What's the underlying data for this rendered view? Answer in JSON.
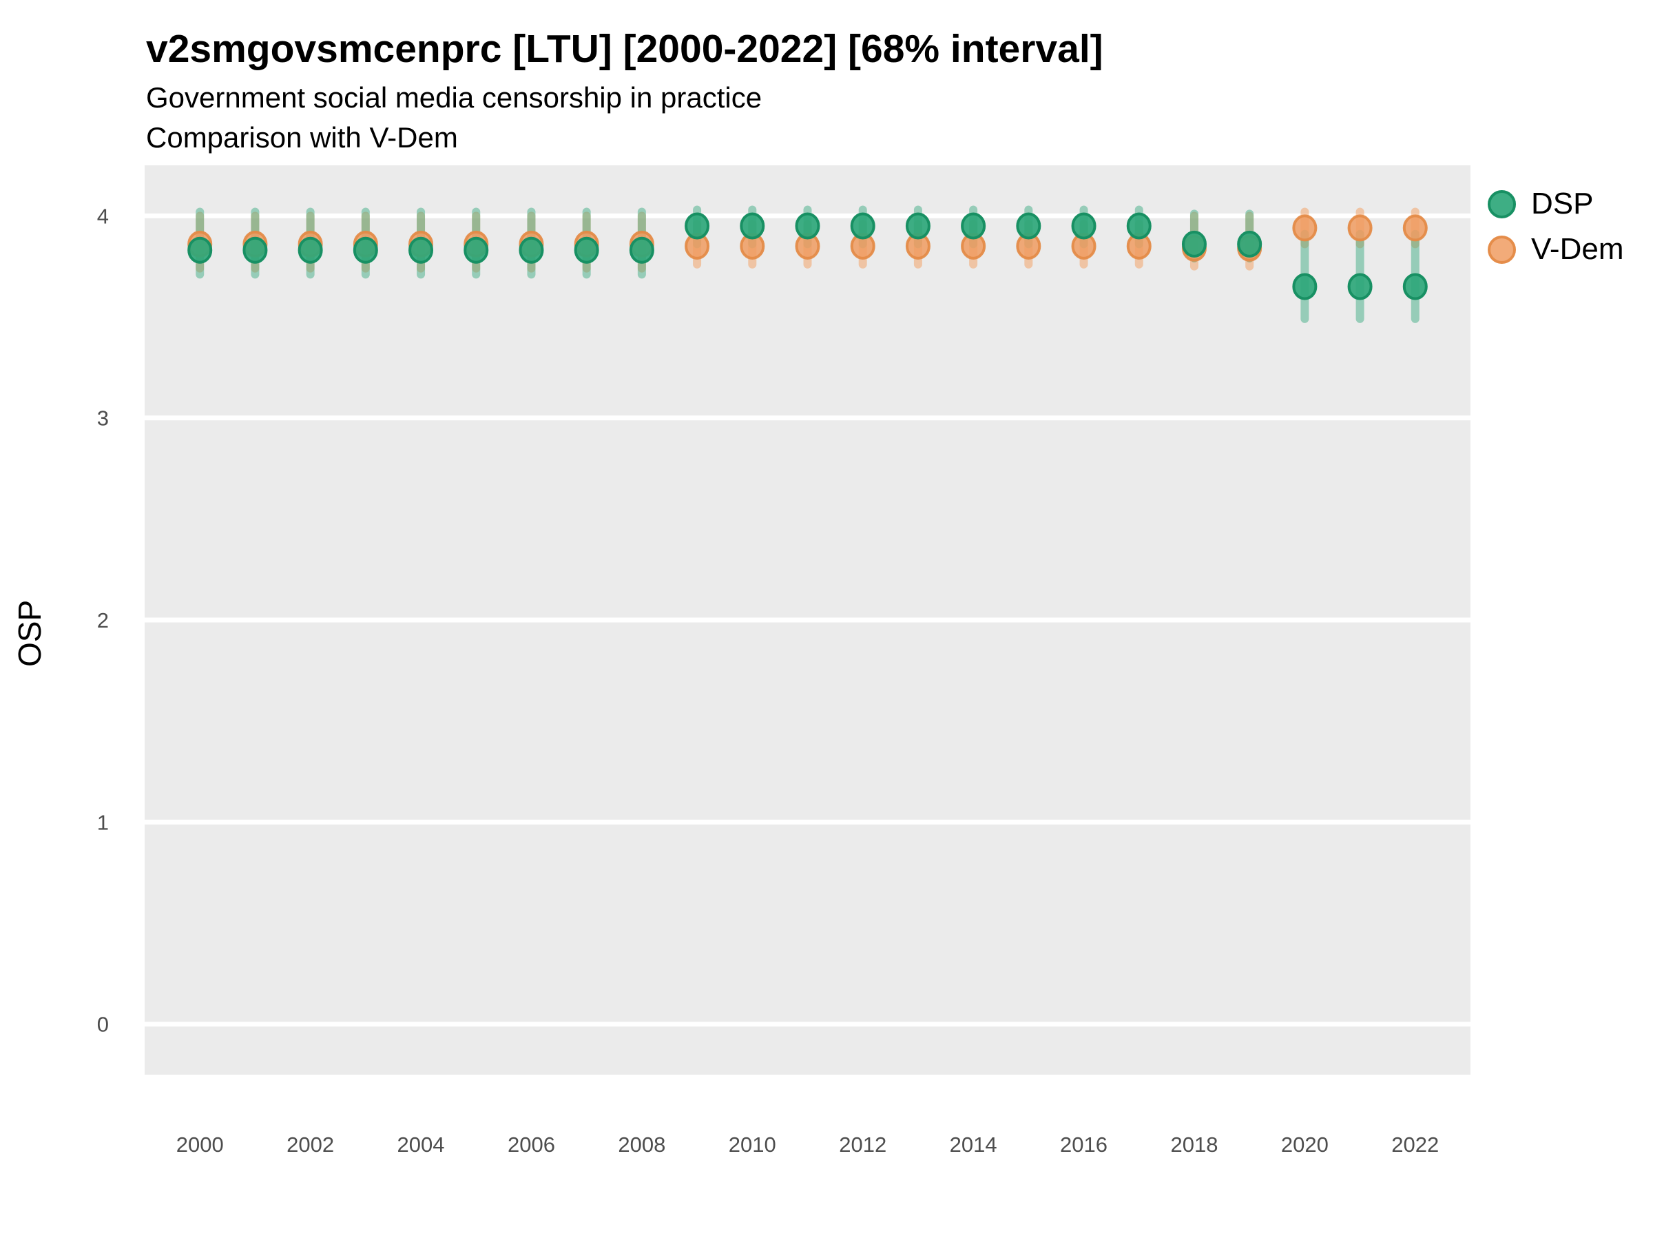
{
  "chart_data": {
    "type": "scatter",
    "title": "v2smgovsmcenprc [LTU] [2000-2022] [68% interval]",
    "subtitle1": "Government social media censorship in practice",
    "subtitle2": "Comparison with V-Dem",
    "ylabel": "OSP",
    "xlabel": "",
    "xlim": [
      1999,
      2023
    ],
    "ylim": [
      -0.25,
      4.25
    ],
    "grid": "horizontal-major-white-on-gray",
    "legend_position": "right",
    "panel_bg": "#EBEBEB",
    "gridline_color": "#FFFFFF",
    "tick_label_color": "#4D4D4D",
    "x": [
      2000,
      2001,
      2002,
      2003,
      2004,
      2005,
      2006,
      2007,
      2008,
      2009,
      2010,
      2011,
      2012,
      2013,
      2014,
      2015,
      2016,
      2017,
      2018,
      2019,
      2020,
      2021,
      2022
    ],
    "x_tick_years": [
      2000,
      2002,
      2004,
      2006,
      2008,
      2010,
      2012,
      2014,
      2016,
      2018,
      2020,
      2022
    ],
    "y_ticks": [
      0,
      1,
      2,
      3,
      4
    ],
    "series": [
      {
        "name": "DSP",
        "point_fill": "rgba(46,167,122,0.92)",
        "point_stroke": "rgba(24,144,99,1)",
        "interval_color": "rgba(46,167,122,0.45)",
        "est": [
          3.83,
          3.83,
          3.83,
          3.83,
          3.83,
          3.83,
          3.83,
          3.83,
          3.83,
          3.95,
          3.95,
          3.95,
          3.95,
          3.95,
          3.95,
          3.95,
          3.95,
          3.95,
          3.86,
          3.86,
          3.65,
          3.65,
          3.65
        ],
        "lo": [
          3.71,
          3.71,
          3.71,
          3.71,
          3.71,
          3.71,
          3.71,
          3.71,
          3.71,
          3.86,
          3.86,
          3.86,
          3.86,
          3.86,
          3.86,
          3.86,
          3.86,
          3.86,
          3.79,
          3.79,
          3.49,
          3.49,
          3.49
        ],
        "hi": [
          4.02,
          4.02,
          4.02,
          4.02,
          4.02,
          4.02,
          4.02,
          4.02,
          4.02,
          4.03,
          4.03,
          4.03,
          4.03,
          4.03,
          4.03,
          4.03,
          4.03,
          4.03,
          4.01,
          4.01,
          3.91,
          3.91,
          3.91
        ]
      },
      {
        "name": "V-Dem",
        "point_fill": "rgba(240,156,97,0.85)",
        "point_stroke": "rgba(228,139,72,0.95)",
        "interval_color": "rgba(243,157,93,0.5)",
        "est": [
          3.86,
          3.86,
          3.86,
          3.86,
          3.86,
          3.86,
          3.86,
          3.86,
          3.86,
          3.85,
          3.85,
          3.85,
          3.85,
          3.85,
          3.85,
          3.85,
          3.85,
          3.85,
          3.84,
          3.84,
          3.94,
          3.94,
          3.94
        ],
        "lo": [
          3.74,
          3.74,
          3.74,
          3.74,
          3.74,
          3.74,
          3.74,
          3.74,
          3.74,
          3.76,
          3.76,
          3.76,
          3.76,
          3.76,
          3.76,
          3.76,
          3.76,
          3.76,
          3.75,
          3.75,
          3.86,
          3.86,
          3.86
        ],
        "hi": [
          4.0,
          4.0,
          4.0,
          4.0,
          4.0,
          4.0,
          4.0,
          4.0,
          4.0,
          3.96,
          3.96,
          3.96,
          3.96,
          3.96,
          3.96,
          3.96,
          3.96,
          3.96,
          4.0,
          4.0,
          4.02,
          4.02,
          4.02
        ]
      }
    ]
  }
}
